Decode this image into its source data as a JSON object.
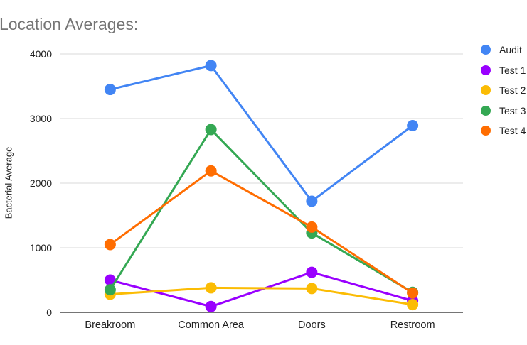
{
  "title": "Location Averages:",
  "chart_data": {
    "type": "line",
    "categories": [
      "Breakroom",
      "Common Area",
      "Doors",
      "Restroom"
    ],
    "series": [
      {
        "name": "Audit",
        "color": "#4285F4",
        "values": [
          3450,
          3820,
          1720,
          2890
        ]
      },
      {
        "name": "Test 1",
        "color": "#9900FF",
        "values": [
          500,
          90,
          620,
          180
        ]
      },
      {
        "name": "Test 2",
        "color": "#FBBC04",
        "values": [
          280,
          380,
          370,
          120
        ]
      },
      {
        "name": "Test 3",
        "color": "#34A853",
        "values": [
          350,
          2830,
          1230,
          310
        ]
      },
      {
        "name": "Test 4",
        "color": "#FF6D01",
        "values": [
          1050,
          2190,
          1320,
          300
        ]
      }
    ],
    "title": "Location Averages:",
    "xlabel": "",
    "ylabel": "Bacterial Average",
    "ylim": [
      0,
      4000
    ],
    "yticks": [
      0,
      1000,
      2000,
      3000,
      4000
    ],
    "grid": true,
    "legend_position": "right"
  },
  "colors": {
    "title_text": "#757575",
    "axis_text": "#212121",
    "gridline": "#d9d9d9",
    "axis_line": "#757575",
    "background": "#ffffff"
  }
}
